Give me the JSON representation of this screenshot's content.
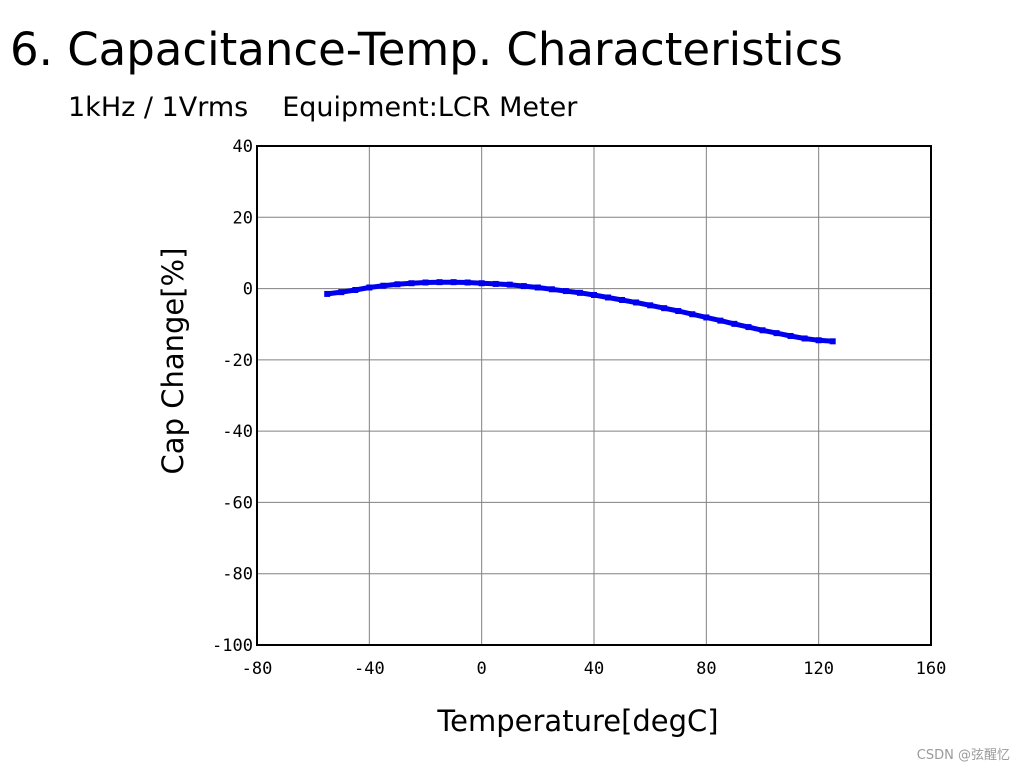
{
  "header": {
    "title": "6. Capacitance-Temp. Characteristics",
    "conditions": "1kHz / 1Vrms",
    "equipment": "Equipment:LCR Meter"
  },
  "watermark": "CSDN @弦醒忆",
  "colors": {
    "series": "#0000ee",
    "grid": "#808080",
    "frame": "#000000"
  },
  "chart_data": {
    "type": "line",
    "title": "Capacitance-Temp. Characteristics",
    "xlabel": "Temperature[degC]",
    "ylabel": "Cap Change[%]",
    "xlim": [
      -80,
      160
    ],
    "ylim": [
      -100,
      40
    ],
    "xticks": [
      -80,
      -40,
      0,
      40,
      80,
      120,
      160
    ],
    "yticks": [
      40,
      20,
      0,
      -20,
      -40,
      -60,
      -80,
      -100
    ],
    "grid": true,
    "series": [
      {
        "name": "Cap Change",
        "x": [
          -55,
          -50,
          -45,
          -40,
          -35,
          -30,
          -25,
          -20,
          -15,
          -10,
          -5,
          0,
          5,
          10,
          15,
          20,
          25,
          30,
          35,
          40,
          45,
          50,
          55,
          60,
          65,
          70,
          75,
          80,
          85,
          90,
          95,
          100,
          105,
          110,
          115,
          120,
          125
        ],
        "y": [
          -1.5,
          -1.0,
          -0.4,
          0.3,
          0.8,
          1.2,
          1.5,
          1.7,
          1.8,
          1.8,
          1.7,
          1.5,
          1.3,
          1.1,
          0.7,
          0.3,
          -0.2,
          -0.7,
          -1.2,
          -1.8,
          -2.5,
          -3.2,
          -3.9,
          -4.7,
          -5.5,
          -6.3,
          -7.2,
          -8.1,
          -9.0,
          -9.9,
          -10.8,
          -11.7,
          -12.5,
          -13.3,
          -14.0,
          -14.5,
          -14.8
        ]
      }
    ]
  }
}
